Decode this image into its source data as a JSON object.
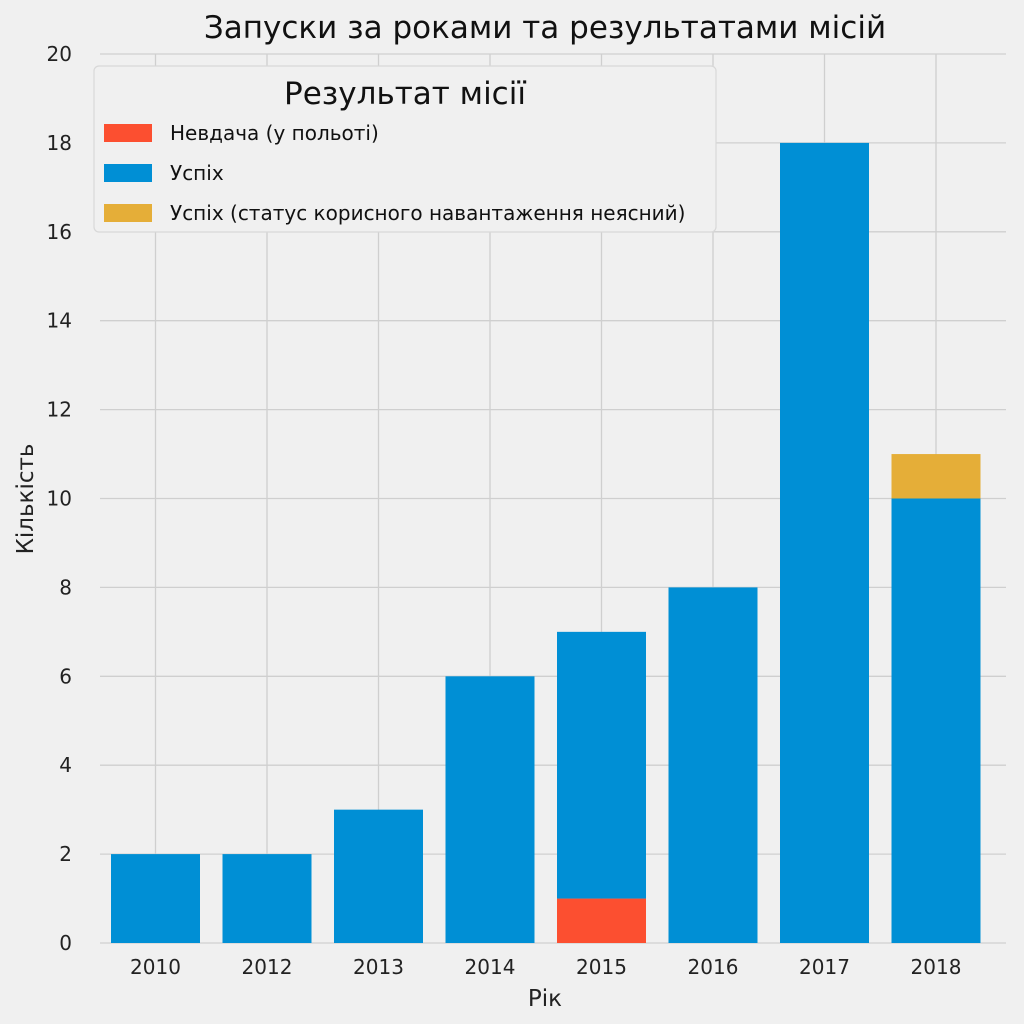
{
  "chart_data": {
    "type": "bar",
    "stacked": true,
    "title": "Запуски за роками та результатами місій",
    "xlabel": "Рік",
    "ylabel": "Кількість",
    "categories": [
      "2010",
      "2012",
      "2013",
      "2014",
      "2015",
      "2016",
      "2017",
      "2018"
    ],
    "ylim": [
      0,
      20
    ],
    "yticks": [
      0,
      2,
      4,
      6,
      8,
      10,
      12,
      14,
      16,
      18,
      20
    ],
    "grid": true,
    "legend": {
      "title": "Результат місії",
      "position": "top-left"
    },
    "series": [
      {
        "name": "Невдача (у польоті)",
        "color": "#fc4f30",
        "values": [
          0,
          0,
          0,
          0,
          1,
          0,
          0,
          0
        ]
      },
      {
        "name": "Успіх",
        "color": "#008fd5",
        "values": [
          2,
          2,
          3,
          6,
          6,
          8,
          18,
          10
        ]
      },
      {
        "name": "Успіх (статус корисного навантаження неясний)",
        "color": "#e5ae38",
        "values": [
          0,
          0,
          0,
          0,
          0,
          0,
          0,
          1
        ]
      }
    ]
  }
}
